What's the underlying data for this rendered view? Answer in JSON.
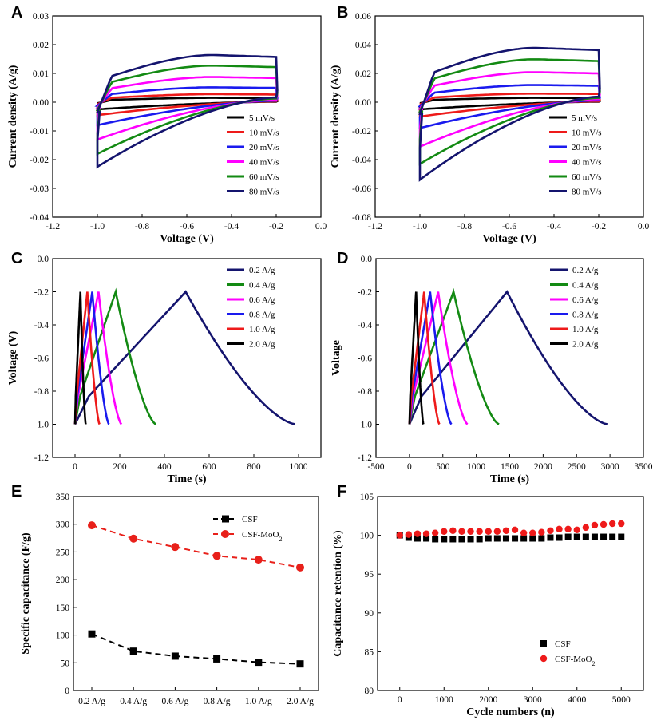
{
  "colors": {
    "navy": "#14146e",
    "green": "#138a13",
    "magenta": "#ff00ff",
    "blue": "#1a1aee",
    "red": "#ee1a1a",
    "black": "#000000",
    "red_dash": "#e8201a"
  },
  "chart_data": [
    {
      "id": "A",
      "letter": "A",
      "type": "line",
      "title": "",
      "xlabel": "Voltage (V)",
      "ylabel": "Current density (A/g)",
      "xlim": [
        -1.2,
        0.0
      ],
      "ylim": [
        -0.04,
        0.03
      ],
      "xticks": [
        "-1.2",
        "-1.0",
        "-0.8",
        "-0.6",
        "-0.4",
        "-0.2",
        "0.0"
      ],
      "yticks": [
        "-0.04",
        "-0.03",
        "-0.02",
        "-0.01",
        "0.00",
        "0.01",
        "0.02",
        "0.03"
      ],
      "legend_position": "bottom-right",
      "series": [
        {
          "name": "5 mV/s",
          "color_key": "black",
          "peak_top": 0.0015,
          "bottom_start": -0.0025
        },
        {
          "name": "10 mV/s",
          "color_key": "red",
          "peak_top": 0.0028,
          "bottom_start": -0.0045
        },
        {
          "name": "20 mV/s",
          "color_key": "blue",
          "peak_top": 0.0052,
          "bottom_start": -0.008
        },
        {
          "name": "40 mV/s",
          "color_key": "magenta",
          "peak_top": 0.0088,
          "bottom_start": -0.013
        },
        {
          "name": "60 mV/s",
          "color_key": "green",
          "peak_top": 0.0128,
          "bottom_start": -0.018
        },
        {
          "name": "80 mV/s",
          "color_key": "navy",
          "peak_top": 0.0165,
          "bottom_start": -0.0225
        }
      ]
    },
    {
      "id": "B",
      "letter": "B",
      "type": "line",
      "title": "",
      "xlabel": "Voltage (V)",
      "ylabel": "Current density (A/g)",
      "xlim": [
        -1.2,
        0.0
      ],
      "ylim": [
        -0.08,
        0.06
      ],
      "xticks": [
        "-1.2",
        "-1.0",
        "-0.8",
        "-0.6",
        "-0.4",
        "-0.2",
        "0.0"
      ],
      "yticks": [
        "-0.08",
        "-0.06",
        "-0.04",
        "-0.02",
        "0.00",
        "0.02",
        "0.04",
        "0.06"
      ],
      "legend_position": "bottom-right",
      "series": [
        {
          "name": "5 mV/s",
          "color_key": "black",
          "peak_top": 0.003,
          "bottom_start": -0.005
        },
        {
          "name": "10 mV/s",
          "color_key": "red",
          "peak_top": 0.006,
          "bottom_start": -0.01
        },
        {
          "name": "20 mV/s",
          "color_key": "blue",
          "peak_top": 0.012,
          "bottom_start": -0.018
        },
        {
          "name": "40 mV/s",
          "color_key": "magenta",
          "peak_top": 0.021,
          "bottom_start": -0.031
        },
        {
          "name": "60 mV/s",
          "color_key": "green",
          "peak_top": 0.03,
          "bottom_start": -0.043
        },
        {
          "name": "80 mV/s",
          "color_key": "navy",
          "peak_top": 0.038,
          "bottom_start": -0.054
        }
      ]
    },
    {
      "id": "C",
      "letter": "C",
      "type": "line",
      "title": "",
      "xlabel": "Time (s)",
      "ylabel": "Voltage (V)",
      "xlim": [
        -100,
        1100
      ],
      "ylim": [
        -1.2,
        0.0
      ],
      "xticks": [
        "0",
        "200",
        "400",
        "600",
        "800",
        "1000"
      ],
      "yticks": [
        "-1.2",
        "-1.0",
        "-0.8",
        "-0.6",
        "-0.4",
        "-0.2",
        "0.0"
      ],
      "legend_position": "top-right",
      "series": [
        {
          "name": "0.2 A/g",
          "color_key": "navy",
          "charge_end_s": 495,
          "discharge_end_s": 985
        },
        {
          "name": "0.4 A/g",
          "color_key": "green",
          "charge_end_s": 182,
          "discharge_end_s": 362
        },
        {
          "name": "0.6 A/g",
          "color_key": "magenta",
          "charge_end_s": 105,
          "discharge_end_s": 208
        },
        {
          "name": "0.8 A/g",
          "color_key": "blue",
          "charge_end_s": 77,
          "discharge_end_s": 152
        },
        {
          "name": "1.0 A/g",
          "color_key": "red",
          "charge_end_s": 55,
          "discharge_end_s": 110
        },
        {
          "name": "2.0 A/g",
          "color_key": "black",
          "charge_end_s": 24,
          "discharge_end_s": 48
        }
      ]
    },
    {
      "id": "D",
      "letter": "D",
      "type": "line",
      "title": "",
      "xlabel": "Time (s)",
      "ylabel": "Voltage",
      "xlim": [
        -500,
        3500
      ],
      "ylim": [
        -1.2,
        0.0
      ],
      "xticks": [
        "-500",
        "0",
        "500",
        "1000",
        "1500",
        "2000",
        "2500",
        "3000",
        "3500"
      ],
      "yticks": [
        "-1.2",
        "-1.0",
        "-0.8",
        "-0.6",
        "-0.4",
        "-0.2",
        "0.0"
      ],
      "legend_position": "top-right",
      "series": [
        {
          "name": "0.2 A/g",
          "color_key": "navy",
          "charge_end_s": 1460,
          "discharge_end_s": 2960
        },
        {
          "name": "0.4 A/g",
          "color_key": "green",
          "charge_end_s": 660,
          "discharge_end_s": 1340
        },
        {
          "name": "0.6 A/g",
          "color_key": "magenta",
          "charge_end_s": 430,
          "discharge_end_s": 870
        },
        {
          "name": "0.8 A/g",
          "color_key": "blue",
          "charge_end_s": 310,
          "discharge_end_s": 630
        },
        {
          "name": "1.0 A/g",
          "color_key": "red",
          "charge_end_s": 220,
          "discharge_end_s": 450
        },
        {
          "name": "2.0 A/g",
          "color_key": "black",
          "charge_end_s": 100,
          "discharge_end_s": 210
        }
      ]
    },
    {
      "id": "E",
      "letter": "E",
      "type": "line",
      "title": "",
      "xlabel": "",
      "ylabel": "Specific capacitance (F/g)",
      "categories": [
        "0.2 A/g",
        "0.4 A/g",
        "0.6 A/g",
        "0.8 A/g",
        "1.0 A/g",
        "2.0 A/g"
      ],
      "ylim": [
        0,
        350
      ],
      "yticks": [
        "0",
        "50",
        "100",
        "150",
        "200",
        "250",
        "300",
        "350"
      ],
      "legend_position": "top-right",
      "series": [
        {
          "name": "CSF",
          "color_key": "black",
          "marker": "square",
          "values": [
            102,
            71,
            62,
            57,
            51,
            48
          ]
        },
        {
          "name": "CSF-MoO",
          "name_sub": "2",
          "color_key": "red_dash",
          "marker": "circle",
          "values": [
            298,
            274,
            259,
            243,
            236,
            222
          ]
        }
      ]
    },
    {
      "id": "F",
      "letter": "F",
      "type": "scatter",
      "title": "",
      "xlabel": "Cycle numbers (n)",
      "ylabel": "Capacitance retention (%)",
      "xlim": [
        -500,
        5500
      ],
      "ylim": [
        80,
        105
      ],
      "xticks": [
        "0",
        "1000",
        "2000",
        "3000",
        "4000",
        "5000"
      ],
      "yticks": [
        "80",
        "85",
        "90",
        "95",
        "100",
        "105"
      ],
      "legend_position": "bottom-right",
      "series": [
        {
          "name": "CSF",
          "color_key": "black",
          "marker": "square",
          "x": [
            0,
            200,
            400,
            600,
            800,
            1000,
            1200,
            1400,
            1600,
            1800,
            2000,
            2200,
            2400,
            2600,
            2800,
            3000,
            3200,
            3400,
            3600,
            3800,
            4000,
            4200,
            4400,
            4600,
            4800,
            5000
          ],
          "y": [
            100.0,
            99.7,
            99.6,
            99.6,
            99.5,
            99.5,
            99.5,
            99.5,
            99.5,
            99.5,
            99.6,
            99.6,
            99.6,
            99.6,
            99.6,
            99.6,
            99.6,
            99.7,
            99.7,
            99.8,
            99.8,
            99.8,
            99.8,
            99.8,
            99.8,
            99.8
          ]
        },
        {
          "name": "CSF-MoO",
          "name_sub": "2",
          "color_key": "red",
          "marker": "circle",
          "x": [
            0,
            200,
            400,
            600,
            800,
            1000,
            1200,
            1400,
            1600,
            1800,
            2000,
            2200,
            2400,
            2600,
            2800,
            3000,
            3200,
            3400,
            3600,
            3800,
            4000,
            4200,
            4400,
            4600,
            4800,
            5000
          ],
          "y": [
            100.0,
            100.1,
            100.2,
            100.2,
            100.3,
            100.5,
            100.6,
            100.5,
            100.5,
            100.5,
            100.5,
            100.5,
            100.6,
            100.7,
            100.3,
            100.3,
            100.4,
            100.6,
            100.8,
            100.8,
            100.7,
            101.0,
            101.3,
            101.4,
            101.5,
            101.5
          ]
        }
      ]
    }
  ]
}
